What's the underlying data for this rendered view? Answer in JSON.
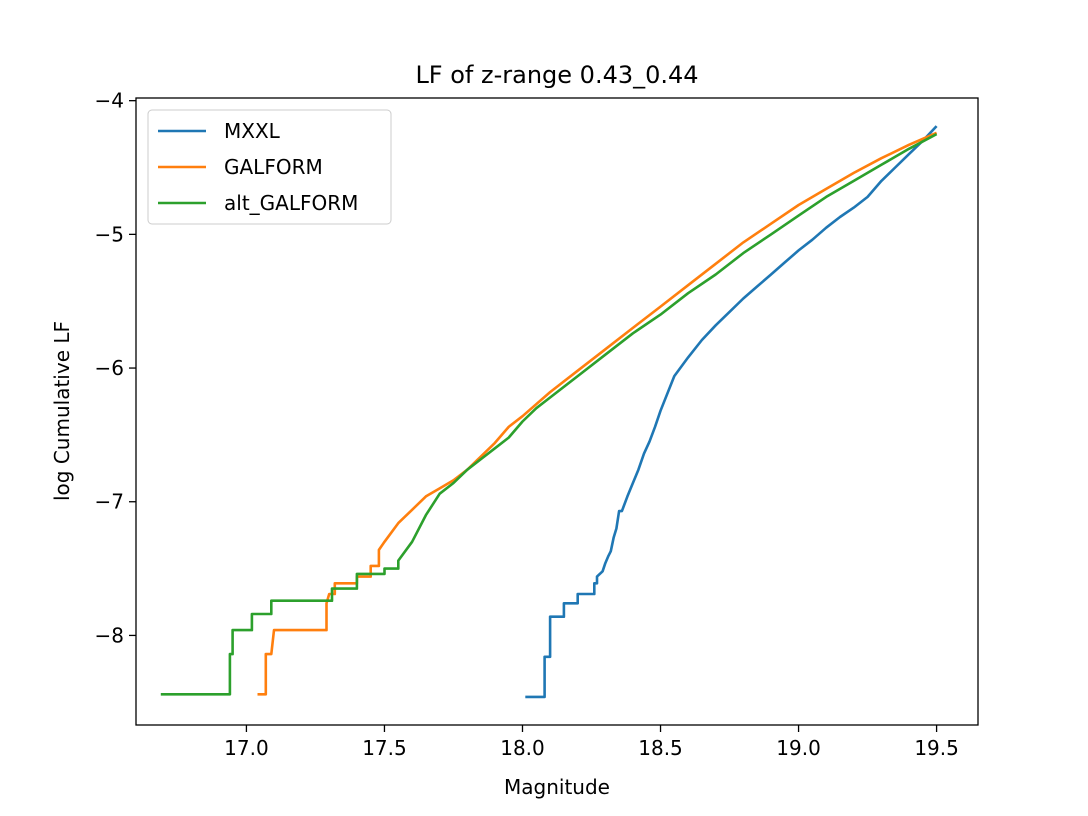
{
  "chart_data": {
    "type": "line",
    "title": "LF of z-range 0.43_0.44",
    "xlabel": "Magnitude",
    "ylabel": "log Cumulative LF",
    "xlim": [
      16.6,
      19.65
    ],
    "ylim": [
      -8.67,
      -3.98
    ],
    "xticks": [
      17.0,
      17.5,
      18.0,
      18.5,
      19.0,
      19.5
    ],
    "xtick_labels": [
      "17.0",
      "17.5",
      "18.0",
      "18.5",
      "19.0",
      "19.5"
    ],
    "yticks": [
      -8,
      -7,
      -6,
      -5,
      -4
    ],
    "ytick_labels": [
      "−8",
      "−7",
      "−6",
      "−5",
      "−4"
    ],
    "grid": false,
    "legend_position": "upper-left",
    "series": [
      {
        "name": "MXXL",
        "color": "#1f77b4",
        "x": [
          18.01,
          18.08,
          18.08,
          18.09,
          18.1,
          18.1,
          18.12,
          18.12,
          18.14,
          18.15,
          18.15,
          18.2,
          18.2,
          18.23,
          18.23,
          18.26,
          18.26,
          18.27,
          18.27,
          18.29,
          18.3,
          18.31,
          18.32,
          18.33,
          18.34,
          18.35,
          18.36,
          18.36,
          18.38,
          18.4,
          18.42,
          18.44,
          18.46,
          18.48,
          18.5,
          18.55,
          18.6,
          18.65,
          18.7,
          18.75,
          18.8,
          18.85,
          18.9,
          18.95,
          19.0,
          19.05,
          19.1,
          19.15,
          19.2,
          19.25,
          19.3,
          19.35,
          19.4,
          19.45,
          19.5
        ],
        "y": [
          -8.46,
          -8.46,
          -8.16,
          -8.16,
          -8.16,
          -7.86,
          -7.86,
          -7.86,
          -7.86,
          -7.86,
          -7.76,
          -7.76,
          -7.69,
          -7.69,
          -7.69,
          -7.69,
          -7.61,
          -7.61,
          -7.56,
          -7.52,
          -7.46,
          -7.41,
          -7.37,
          -7.27,
          -7.2,
          -7.07,
          -7.07,
          -7.07,
          -6.96,
          -6.86,
          -6.76,
          -6.64,
          -6.55,
          -6.44,
          -6.32,
          -6.06,
          -5.92,
          -5.79,
          -5.68,
          -5.58,
          -5.48,
          -5.39,
          -5.3,
          -5.21,
          -5.12,
          -5.04,
          -4.95,
          -4.87,
          -4.8,
          -4.72,
          -4.6,
          -4.5,
          -4.4,
          -4.3,
          -4.19
        ]
      },
      {
        "name": "GALFORM",
        "color": "#ff7f0e",
        "x": [
          17.04,
          17.07,
          17.07,
          17.08,
          17.09,
          17.1,
          17.1,
          17.29,
          17.29,
          17.3,
          17.32,
          17.32,
          17.35,
          17.35,
          17.4,
          17.4,
          17.45,
          17.45,
          17.48,
          17.48,
          17.5,
          17.55,
          17.6,
          17.65,
          17.7,
          17.75,
          17.8,
          17.85,
          17.9,
          17.95,
          18.0,
          18.1,
          18.2,
          18.3,
          18.4,
          18.5,
          18.6,
          18.7,
          18.8,
          18.9,
          19.0,
          19.1,
          19.2,
          19.3,
          19.4,
          19.5
        ],
        "y": [
          -8.44,
          -8.44,
          -8.14,
          -8.14,
          -8.14,
          -7.96,
          -7.96,
          -7.96,
          -7.76,
          -7.69,
          -7.69,
          -7.61,
          -7.61,
          -7.61,
          -7.61,
          -7.56,
          -7.56,
          -7.48,
          -7.48,
          -7.36,
          -7.3,
          -7.16,
          -7.06,
          -6.96,
          -6.9,
          -6.84,
          -6.76,
          -6.66,
          -6.56,
          -6.44,
          -6.36,
          -6.18,
          -6.02,
          -5.86,
          -5.7,
          -5.54,
          -5.38,
          -5.22,
          -5.06,
          -4.92,
          -4.78,
          -4.66,
          -4.54,
          -4.43,
          -4.33,
          -4.24
        ]
      },
      {
        "name": "alt_GALFORM",
        "color": "#2ca02c",
        "x": [
          16.69,
          16.94,
          16.94,
          16.95,
          16.95,
          17.02,
          17.02,
          17.09,
          17.09,
          17.31,
          17.31,
          17.4,
          17.4,
          17.45,
          17.45,
          17.5,
          17.5,
          17.55,
          17.55,
          17.6,
          17.65,
          17.7,
          17.75,
          17.8,
          17.85,
          17.9,
          17.95,
          18.0,
          18.05,
          18.1,
          18.2,
          18.3,
          18.4,
          18.5,
          18.6,
          18.7,
          18.8,
          18.9,
          19.0,
          19.1,
          19.2,
          19.3,
          19.4,
          19.5
        ],
        "y": [
          -8.44,
          -8.44,
          -8.14,
          -8.14,
          -7.96,
          -7.96,
          -7.84,
          -7.84,
          -7.74,
          -7.74,
          -7.65,
          -7.65,
          -7.54,
          -7.54,
          -7.54,
          -7.54,
          -7.5,
          -7.5,
          -7.44,
          -7.3,
          -7.1,
          -6.94,
          -6.86,
          -6.76,
          -6.68,
          -6.6,
          -6.52,
          -6.4,
          -6.3,
          -6.22,
          -6.06,
          -5.9,
          -5.74,
          -5.6,
          -5.44,
          -5.3,
          -5.14,
          -5.0,
          -4.86,
          -4.72,
          -4.6,
          -4.48,
          -4.36,
          -4.25
        ]
      }
    ]
  }
}
